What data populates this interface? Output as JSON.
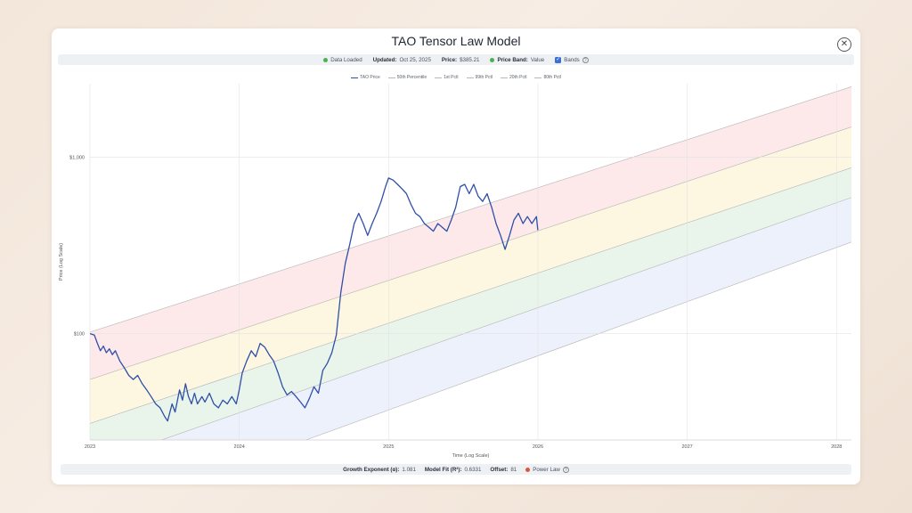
{
  "title": "TAO Tensor Law Model",
  "status": {
    "data_loaded": "Data Loaded",
    "updated_label": "Updated:",
    "updated_value": "Oct 25, 2025",
    "price_label": "Price:",
    "price_value": "$385.21",
    "band_label": "Price Band:",
    "band_value": "Value",
    "bands_label": "Bands",
    "loaded_color": "#4caf50",
    "band_color": "#4caf50"
  },
  "legend": [
    {
      "label": "TAO Price",
      "color": "#2f4fa8"
    },
    {
      "label": "50th Percentile",
      "color": "#b8b8b8"
    },
    {
      "label": "1st Pctl",
      "color": "#b8b8b8"
    },
    {
      "label": "99th Pctl",
      "color": "#b8b8b8"
    },
    {
      "label": "20th Pctl",
      "color": "#b8b8b8"
    },
    {
      "label": "80th Pctl",
      "color": "#b8b8b8"
    }
  ],
  "footer": {
    "growth_label": "Growth Exponent (α):",
    "growth_value": "1.081",
    "fit_label": "Model Fit (R²):",
    "fit_value": "0.6331",
    "offset_label": "Offset:",
    "offset_value": "81",
    "power_law_label": "Power Law",
    "power_law_color": "#e0553a"
  },
  "chart_data": {
    "type": "line",
    "xlabel": "Time (Log Scale)",
    "ylabel": "Price (Log Scale)",
    "y_scale": "log",
    "x_tick_labels": [
      "2023",
      "2024",
      "2025",
      "2026",
      "2027",
      "2028"
    ],
    "x_tick_years": [
      2023,
      2024,
      2025,
      2026,
      2027,
      2028
    ],
    "y_tick_labels": [
      "$100",
      "$1,000"
    ],
    "y_tick_values": [
      100,
      1000
    ],
    "ylim": [
      25,
      2600
    ],
    "xlim": [
      2023.0,
      2028.1
    ],
    "grid": true,
    "legend_position": "top-center",
    "band_colors": [
      "#fde8ea",
      "#fdf7e1",
      "#e9f5ea",
      "#edf1fb"
    ],
    "band_lines": [
      {
        "name": "99th Pctl",
        "start": [
          2023.0,
          102
        ],
        "end": [
          2028.1,
          2500
        ]
      },
      {
        "name": "80th Pctl",
        "start": [
          2023.0,
          55
        ],
        "end": [
          2028.1,
          1480
        ]
      },
      {
        "name": "50th Percentile",
        "start": [
          2023.0,
          31
        ],
        "end": [
          2028.1,
          870
        ]
      },
      {
        "name": "20th Pctl",
        "start": [
          2023.0,
          18
        ],
        "end": [
          2028.1,
          590
        ]
      },
      {
        "name": "1st Pctl",
        "start": [
          2023.0,
          9
        ],
        "end": [
          2028.1,
          330
        ]
      }
    ],
    "series": [
      {
        "name": "TAO Price",
        "points": [
          [
            2023.0,
            100
          ],
          [
            2023.03,
            98
          ],
          [
            2023.05,
            88
          ],
          [
            2023.07,
            80
          ],
          [
            2023.09,
            85
          ],
          [
            2023.11,
            78
          ],
          [
            2023.13,
            82
          ],
          [
            2023.15,
            76
          ],
          [
            2023.17,
            80
          ],
          [
            2023.2,
            70
          ],
          [
            2023.23,
            64
          ],
          [
            2023.26,
            58
          ],
          [
            2023.29,
            55
          ],
          [
            2023.32,
            58
          ],
          [
            2023.35,
            52
          ],
          [
            2023.38,
            48
          ],
          [
            2023.41,
            44
          ],
          [
            2023.44,
            40
          ],
          [
            2023.47,
            38
          ],
          [
            2023.5,
            34
          ],
          [
            2023.52,
            32
          ],
          [
            2023.55,
            40
          ],
          [
            2023.57,
            36
          ],
          [
            2023.6,
            48
          ],
          [
            2023.62,
            42
          ],
          [
            2023.64,
            52
          ],
          [
            2023.66,
            44
          ],
          [
            2023.68,
            40
          ],
          [
            2023.7,
            46
          ],
          [
            2023.72,
            40
          ],
          [
            2023.75,
            44
          ],
          [
            2023.77,
            41
          ],
          [
            2023.8,
            46
          ],
          [
            2023.83,
            40
          ],
          [
            2023.86,
            38
          ],
          [
            2023.89,
            42
          ],
          [
            2023.92,
            40
          ],
          [
            2023.95,
            44
          ],
          [
            2023.98,
            40
          ],
          [
            2024.0,
            48
          ],
          [
            2024.02,
            60
          ],
          [
            2024.05,
            70
          ],
          [
            2024.08,
            80
          ],
          [
            2024.11,
            74
          ],
          [
            2024.14,
            88
          ],
          [
            2024.17,
            84
          ],
          [
            2024.2,
            76
          ],
          [
            2024.23,
            70
          ],
          [
            2024.26,
            60
          ],
          [
            2024.29,
            50
          ],
          [
            2024.32,
            45
          ],
          [
            2024.35,
            47
          ],
          [
            2024.38,
            44
          ],
          [
            2024.41,
            41
          ],
          [
            2024.44,
            38
          ],
          [
            2024.47,
            43
          ],
          [
            2024.5,
            50
          ],
          [
            2024.53,
            46
          ],
          [
            2024.56,
            62
          ],
          [
            2024.59,
            68
          ],
          [
            2024.62,
            78
          ],
          [
            2024.65,
            98
          ],
          [
            2024.68,
            170
          ],
          [
            2024.71,
            250
          ],
          [
            2024.74,
            320
          ],
          [
            2024.77,
            420
          ],
          [
            2024.8,
            480
          ],
          [
            2024.83,
            420
          ],
          [
            2024.86,
            360
          ],
          [
            2024.89,
            420
          ],
          [
            2024.92,
            480
          ],
          [
            2024.95,
            560
          ],
          [
            2024.98,
            680
          ],
          [
            2025.0,
            760
          ],
          [
            2025.03,
            740
          ],
          [
            2025.06,
            700
          ],
          [
            2025.09,
            660
          ],
          [
            2025.12,
            620
          ],
          [
            2025.15,
            540
          ],
          [
            2025.18,
            480
          ],
          [
            2025.21,
            460
          ],
          [
            2025.24,
            420
          ],
          [
            2025.27,
            400
          ],
          [
            2025.3,
            380
          ],
          [
            2025.33,
            420
          ],
          [
            2025.36,
            400
          ],
          [
            2025.39,
            380
          ],
          [
            2025.42,
            440
          ],
          [
            2025.45,
            520
          ],
          [
            2025.48,
            680
          ],
          [
            2025.51,
            700
          ],
          [
            2025.54,
            620
          ],
          [
            2025.57,
            700
          ],
          [
            2025.6,
            600
          ],
          [
            2025.63,
            560
          ],
          [
            2025.66,
            620
          ],
          [
            2025.69,
            520
          ],
          [
            2025.72,
            420
          ],
          [
            2025.75,
            360
          ],
          [
            2025.78,
            300
          ],
          [
            2025.81,
            360
          ],
          [
            2025.84,
            440
          ],
          [
            2025.87,
            480
          ],
          [
            2025.9,
            420
          ],
          [
            2025.93,
            460
          ],
          [
            2025.96,
            420
          ],
          [
            2025.99,
            460
          ],
          [
            2026.0,
            385.21
          ]
        ]
      }
    ]
  }
}
